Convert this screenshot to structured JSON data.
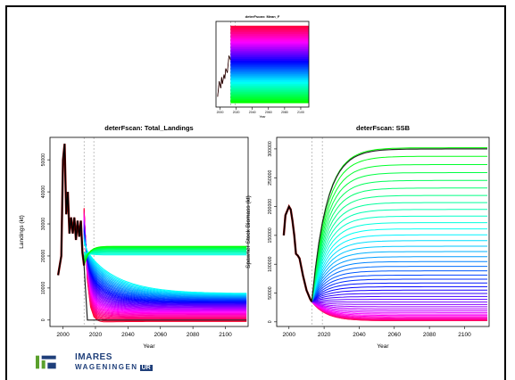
{
  "chart_data": [
    {
      "id": "small",
      "type": "area",
      "title": "deterFscan: Mean_F",
      "xlabel": "Year",
      "ylabel": "",
      "xlim": [
        1995,
        2110
      ],
      "ylim": [
        0,
        1
      ],
      "xticks": [
        2000,
        2020,
        2040,
        2060,
        2080,
        2100
      ],
      "yticks": [],
      "vlines": [
        2013,
        2019
      ],
      "history": {
        "x": [
          1997,
          1999,
          2001,
          2002,
          2003,
          2005,
          2006,
          2007,
          2009,
          2011,
          2013
        ],
        "y": [
          0.12,
          0.3,
          0.22,
          0.35,
          0.27,
          0.38,
          0.33,
          0.45,
          0.4,
          0.6,
          0.55
        ]
      },
      "band": {
        "x0": 2013,
        "x1": 2110,
        "y0": 0.05,
        "y1": 0.95
      }
    },
    {
      "id": "landings",
      "type": "line",
      "title": "deterFscan: Total_Landings",
      "xlabel": "Year",
      "ylabel": "Landings (kt)",
      "xlim": [
        1992,
        2114
      ],
      "ylim": [
        -2000,
        57000
      ],
      "xticks": [
        2000,
        2020,
        2040,
        2060,
        2080,
        2100
      ],
      "yticks": [
        0,
        10000,
        20000,
        30000,
        40000,
        50000
      ],
      "vlines": [
        2013,
        2019
      ],
      "history": {
        "x": [
          1997,
          1999,
          2000,
          2001,
          2002,
          2003,
          2004,
          2005,
          2006,
          2007,
          2008,
          2009,
          2010,
          2011,
          2012,
          2013
        ],
        "y": [
          14000,
          20000,
          50000,
          55000,
          33000,
          40000,
          27000,
          32000,
          27000,
          32000,
          25000,
          31000,
          26000,
          31000,
          21000,
          17000
        ]
      },
      "scan": {
        "n": 60,
        "start_year": 2013,
        "end_year": 2113
      }
    },
    {
      "id": "ssb",
      "type": "line",
      "title": "deterFscan: SSB",
      "xlabel": "Year",
      "ylabel": "Spawner Stock Biomass (kt)",
      "xlim": [
        1993,
        2114
      ],
      "ylim": [
        -8000,
        320000
      ],
      "xticks": [
        2000,
        2020,
        2040,
        2060,
        2080,
        2100
      ],
      "yticks": [
        0,
        50000,
        100000,
        150000,
        200000,
        250000,
        300000
      ],
      "vlines": [
        2013,
        2019
      ],
      "history": {
        "x": [
          1997,
          1998,
          2000,
          2001,
          2002,
          2003,
          2004,
          2005,
          2006,
          2008,
          2010,
          2012,
          2013
        ],
        "y": [
          150000,
          185000,
          200000,
          195000,
          175000,
          150000,
          118000,
          115000,
          110000,
          80000,
          55000,
          40000,
          35000
        ]
      },
      "scan": {
        "n": 45,
        "start_year": 2013,
        "end_year": 2113
      }
    }
  ],
  "logo": {
    "line1": "IMARES",
    "line2": "WAGENINGEN",
    "badge": "UR"
  },
  "colors": {
    "history": "#000000",
    "imares_blue": "#1f3f7a",
    "imares_green": "#5aa02c"
  }
}
